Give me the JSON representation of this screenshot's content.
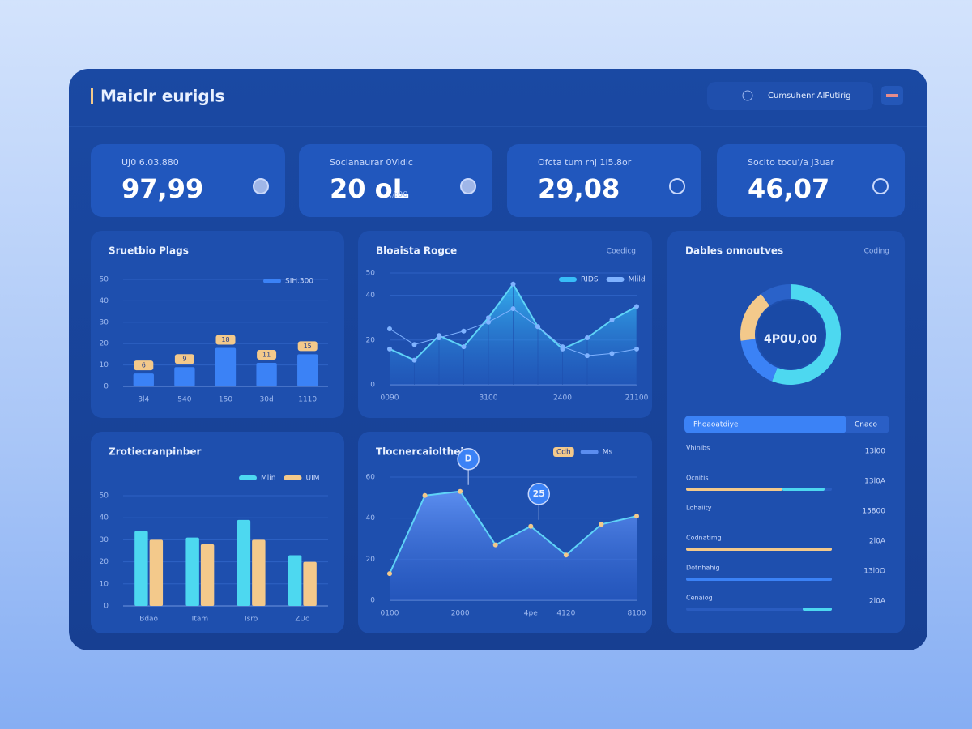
{
  "header": {
    "title": "Maiclr eurigls",
    "button": "Cumsuhenr AlPutirig"
  },
  "kpis": [
    {
      "label": "UJ0 6.03.880",
      "value": "97,99"
    },
    {
      "label": "Socianaurar 0Vidic",
      "value": "20 oL",
      "note": ",/:00"
    },
    {
      "label": "Ofcta tum rnj 1l5.8or",
      "value": "29,08"
    },
    {
      "label": "Socito tocu'/a J3uar",
      "value": "46,07"
    }
  ],
  "charts": [
    {
      "type": "bar",
      "title": "Sruetbio Plags",
      "categories": [
        "3l4",
        "540",
        "150",
        "30d",
        "1110"
      ],
      "ylim": [
        0,
        50
      ],
      "yticks": [
        0,
        10,
        20,
        30,
        40,
        50
      ],
      "series": [
        {
          "name": "SIH.300",
          "color": "#3b82f6",
          "values": [
            6,
            9,
            18,
            11,
            15
          ]
        }
      ],
      "label_color": "#f3c98b"
    },
    {
      "type": "area",
      "title": "Bloaista Rogce",
      "tag": "Coedicg",
      "categories": [
        "0090",
        null,
        null,
        null,
        "3100",
        null,
        null,
        "2400",
        null,
        null,
        "21100"
      ],
      "ylim": [
        0,
        50
      ],
      "yticks": [
        0,
        20,
        40,
        50
      ],
      "series": [
        {
          "name": "RIDS",
          "color": "#38bdf8",
          "kind": "area",
          "values": [
            16,
            11,
            22,
            17,
            30,
            45,
            26,
            16,
            21,
            29,
            35
          ]
        },
        {
          "name": "Mlild",
          "color": "#7fb2ff",
          "kind": "line",
          "values": [
            25,
            18,
            21,
            24,
            28,
            34,
            26,
            17,
            13,
            14,
            16
          ]
        }
      ]
    },
    {
      "type": "bar",
      "title": "Zrotiecranpinber",
      "categories": [
        "Bdao",
        "Itam",
        "Isro",
        "ZUo"
      ],
      "ylim": [
        0,
        50
      ],
      "yticks": [
        0,
        10,
        20,
        30,
        40,
        50
      ],
      "series": [
        {
          "name": "Mlin",
          "color": "#4dd8f0",
          "values": [
            34,
            31,
            39,
            23
          ]
        },
        {
          "name": "UIM",
          "color": "#f3c98b",
          "values": [
            30,
            28,
            30,
            20
          ]
        }
      ]
    },
    {
      "type": "area",
      "title": "Tlocnercaiolthein",
      "tag": "Cdh",
      "categories": [
        "0100",
        null,
        "2000",
        null,
        "4pe",
        "4120",
        null,
        "8100"
      ],
      "ylim": [
        0,
        60
      ],
      "yticks": [
        0,
        20,
        40,
        60
      ],
      "series": [
        {
          "name": "Ms",
          "color": "#5b8def",
          "kind": "area",
          "values": [
            13,
            51,
            53,
            27,
            36,
            22,
            37,
            41
          ]
        }
      ],
      "annotations": [
        "D",
        "25"
      ]
    },
    {
      "type": "pie",
      "title": "Dables onnoutves",
      "tag": "Coding",
      "center": "4P0U,00",
      "values": [
        56,
        17,
        17,
        10
      ],
      "colors": [
        "#4dd8f0",
        "#3b82f6",
        "#f3c98b",
        "#2a62c9"
      ]
    }
  ],
  "list": {
    "header": "Fhoaoatdiye",
    "action": "Cnaco",
    "rows": [
      {
        "label": "Vhinibs",
        "value": "13l00",
        "bars": []
      },
      {
        "label": "Ocnitis",
        "value": "13l0A",
        "bars": [
          {
            "color": "#f3c98b",
            "start": 0,
            "end": 66
          },
          {
            "color": "#4dd8f0",
            "start": 66,
            "end": 95
          }
        ]
      },
      {
        "label": "Lohaiity",
        "value": "15800",
        "bars": []
      },
      {
        "label": "Codnatimg",
        "value": "2l0A",
        "bars": [
          {
            "color": "#f3c98b",
            "start": 0,
            "end": 100
          }
        ]
      },
      {
        "label": "Dotnhahig",
        "value": "13l0O",
        "bars": [
          {
            "color": "#3b82f6",
            "start": 0,
            "end": 100
          }
        ]
      },
      {
        "label": "Cenaiog",
        "value": "2l0A",
        "bars": [
          {
            "color": "#4dd8f0",
            "start": 80,
            "end": 100
          }
        ]
      }
    ]
  }
}
